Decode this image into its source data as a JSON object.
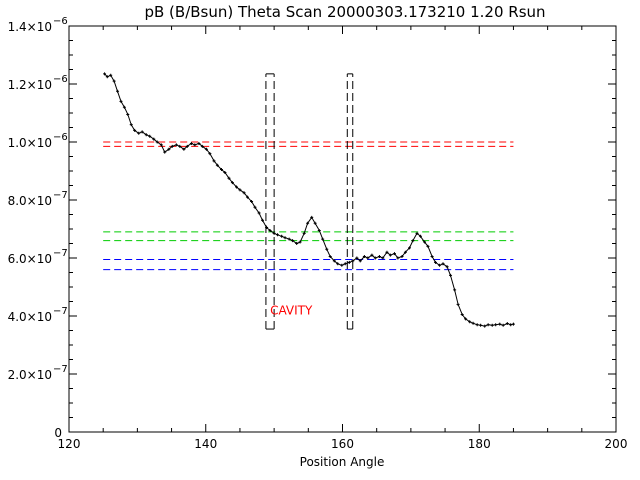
{
  "chart_data": {
    "type": "scatter",
    "title": "pB (B/Bsun) Theta Scan 20000303.173210 1.20 Rsun",
    "xlabel": "Position Angle",
    "ylabel": "",
    "xlim": [
      120,
      200
    ],
    "ylim": [
      0,
      1.4e-06
    ],
    "x_ticks": [
      120,
      140,
      160,
      180,
      200
    ],
    "x_tick_labels": [
      "120",
      "140",
      "160",
      "180",
      "200"
    ],
    "y_ticks": [
      0,
      2e-07,
      4e-07,
      6e-07,
      8e-07,
      1e-06,
      1.2e-06,
      1.4e-06
    ],
    "y_tick_labels": [
      {
        "mantissa": "0",
        "exp": ""
      },
      {
        "mantissa": "2.0×10",
        "exp": "−7"
      },
      {
        "mantissa": "4.0×10",
        "exp": "−7"
      },
      {
        "mantissa": "6.0×10",
        "exp": "−7"
      },
      {
        "mantissa": "8.0×10",
        "exp": "−7"
      },
      {
        "mantissa": "1.0×10",
        "exp": "−6"
      },
      {
        "mantissa": "1.2×10",
        "exp": "−6"
      },
      {
        "mantissa": "1.4×10",
        "exp": "−6"
      }
    ],
    "grid": false,
    "annotation": {
      "text": "CAVITY",
      "x": 152.5,
      "y": 4.05e-07,
      "color": "#ff0000"
    },
    "series": [
      {
        "color": "#000000",
        "x": [
          125.2,
          125.6,
          126.1,
          126.6,
          127.1,
          127.6,
          128.1,
          128.6,
          129.1,
          129.6,
          130.2,
          130.7,
          131.3,
          131.8,
          132.4,
          132.9,
          133.5,
          134.0,
          134.6,
          135.1,
          135.7,
          136.2,
          136.8,
          137.3,
          137.9,
          138.4,
          139.0,
          139.5,
          140.1,
          140.6,
          141.2,
          141.7,
          142.3,
          142.8,
          143.4,
          143.9,
          144.5,
          145.0,
          145.6,
          146.1,
          146.7,
          147.2,
          147.8,
          148.3,
          148.9,
          149.4,
          150.0,
          150.5,
          151.1,
          151.6,
          152.2,
          152.7,
          153.3,
          153.8,
          154.4,
          154.9,
          155.5,
          156.0,
          156.6,
          157.1,
          157.7,
          158.2,
          158.8,
          159.3,
          159.9,
          160.4,
          161.0,
          161.5,
          162.1,
          162.6,
          163.2,
          163.7,
          164.3,
          164.8,
          165.4,
          165.9,
          166.5,
          167.0,
          167.6,
          168.1,
          168.7,
          169.2,
          169.8,
          170.3,
          170.9,
          171.4,
          172.0,
          172.5,
          173.1,
          173.6,
          174.2,
          174.7,
          175.3,
          175.8,
          176.4,
          176.9,
          177.5,
          178.0,
          178.6,
          179.1,
          179.7,
          180.2,
          180.8,
          181.3,
          181.9,
          182.4,
          183.0,
          183.5,
          184.1,
          184.6,
          185.0
        ],
        "y": [
          1.235e-06,
          1.225e-06,
          1.23e-06,
          1.21e-06,
          1.175e-06,
          1.14e-06,
          1.12e-06,
          1.095e-06,
          1.06e-06,
          1.04e-06,
          1.03e-06,
          1.035e-06,
          1.025e-06,
          1.02e-06,
          1.01e-06,
          1e-06,
          9.9e-07,
          9.65e-07,
          9.75e-07,
          9.85e-07,
          9.9e-07,
          9.85e-07,
          9.75e-07,
          9.85e-07,
          9.95e-07,
          9.9e-07,
          9.95e-07,
          9.85e-07,
          9.75e-07,
          9.6e-07,
          9.35e-07,
          9.2e-07,
          9.05e-07,
          8.95e-07,
          8.75e-07,
          8.6e-07,
          8.45e-07,
          8.35e-07,
          8.25e-07,
          8.1e-07,
          7.95e-07,
          7.75e-07,
          7.55e-07,
          7.3e-07,
          7.05e-07,
          6.95e-07,
          6.85e-07,
          6.8e-07,
          6.75e-07,
          6.7e-07,
          6.65e-07,
          6.6e-07,
          6.5e-07,
          6.55e-07,
          6.85e-07,
          7.2e-07,
          7.4e-07,
          7.2e-07,
          6.95e-07,
          6.65e-07,
          6.3e-07,
          6.05e-07,
          5.9e-07,
          5.8e-07,
          5.75e-07,
          5.8e-07,
          5.85e-07,
          5.9e-07,
          6e-07,
          5.9e-07,
          6.05e-07,
          6e-07,
          6.1e-07,
          6e-07,
          6.05e-07,
          6e-07,
          6.2e-07,
          6.1e-07,
          6.15e-07,
          6e-07,
          6.05e-07,
          6.2e-07,
          6.35e-07,
          6.6e-07,
          6.85e-07,
          6.75e-07,
          6.55e-07,
          6.4e-07,
          6.05e-07,
          5.85e-07,
          5.75e-07,
          5.8e-07,
          5.7e-07,
          5.4e-07,
          4.9e-07,
          4.4e-07,
          4.05e-07,
          3.9e-07,
          3.8e-07,
          3.75e-07,
          3.7e-07,
          3.68e-07,
          3.65e-07,
          3.7e-07,
          3.68e-07,
          3.7e-07,
          3.72e-07,
          3.68e-07,
          3.74e-07,
          3.7e-07,
          3.72e-07
        ]
      }
    ],
    "reference_lines": [
      {
        "color": "#ff0000",
        "y": 1e-06,
        "x0": 125,
        "x1": 185
      },
      {
        "color": "#ff0000",
        "y": 9.85e-07,
        "x0": 125,
        "x1": 185
      },
      {
        "color": "#00cc00",
        "y": 6.9e-07,
        "x0": 125,
        "x1": 185
      },
      {
        "color": "#00cc00",
        "y": 6.6e-07,
        "x0": 125,
        "x1": 185
      },
      {
        "color": "#0000ff",
        "y": 5.95e-07,
        "x0": 125,
        "x1": 185
      },
      {
        "color": "#0000ff",
        "y": 5.6e-07,
        "x0": 125,
        "x1": 185
      }
    ],
    "regions": [
      {
        "x0": 148.8,
        "x1": 150.0,
        "y0": 3.55e-07,
        "y1": 1.235e-06
      },
      {
        "x0": 160.7,
        "x1": 161.5,
        "y0": 3.55e-07,
        "y1": 1.235e-06
      }
    ]
  }
}
